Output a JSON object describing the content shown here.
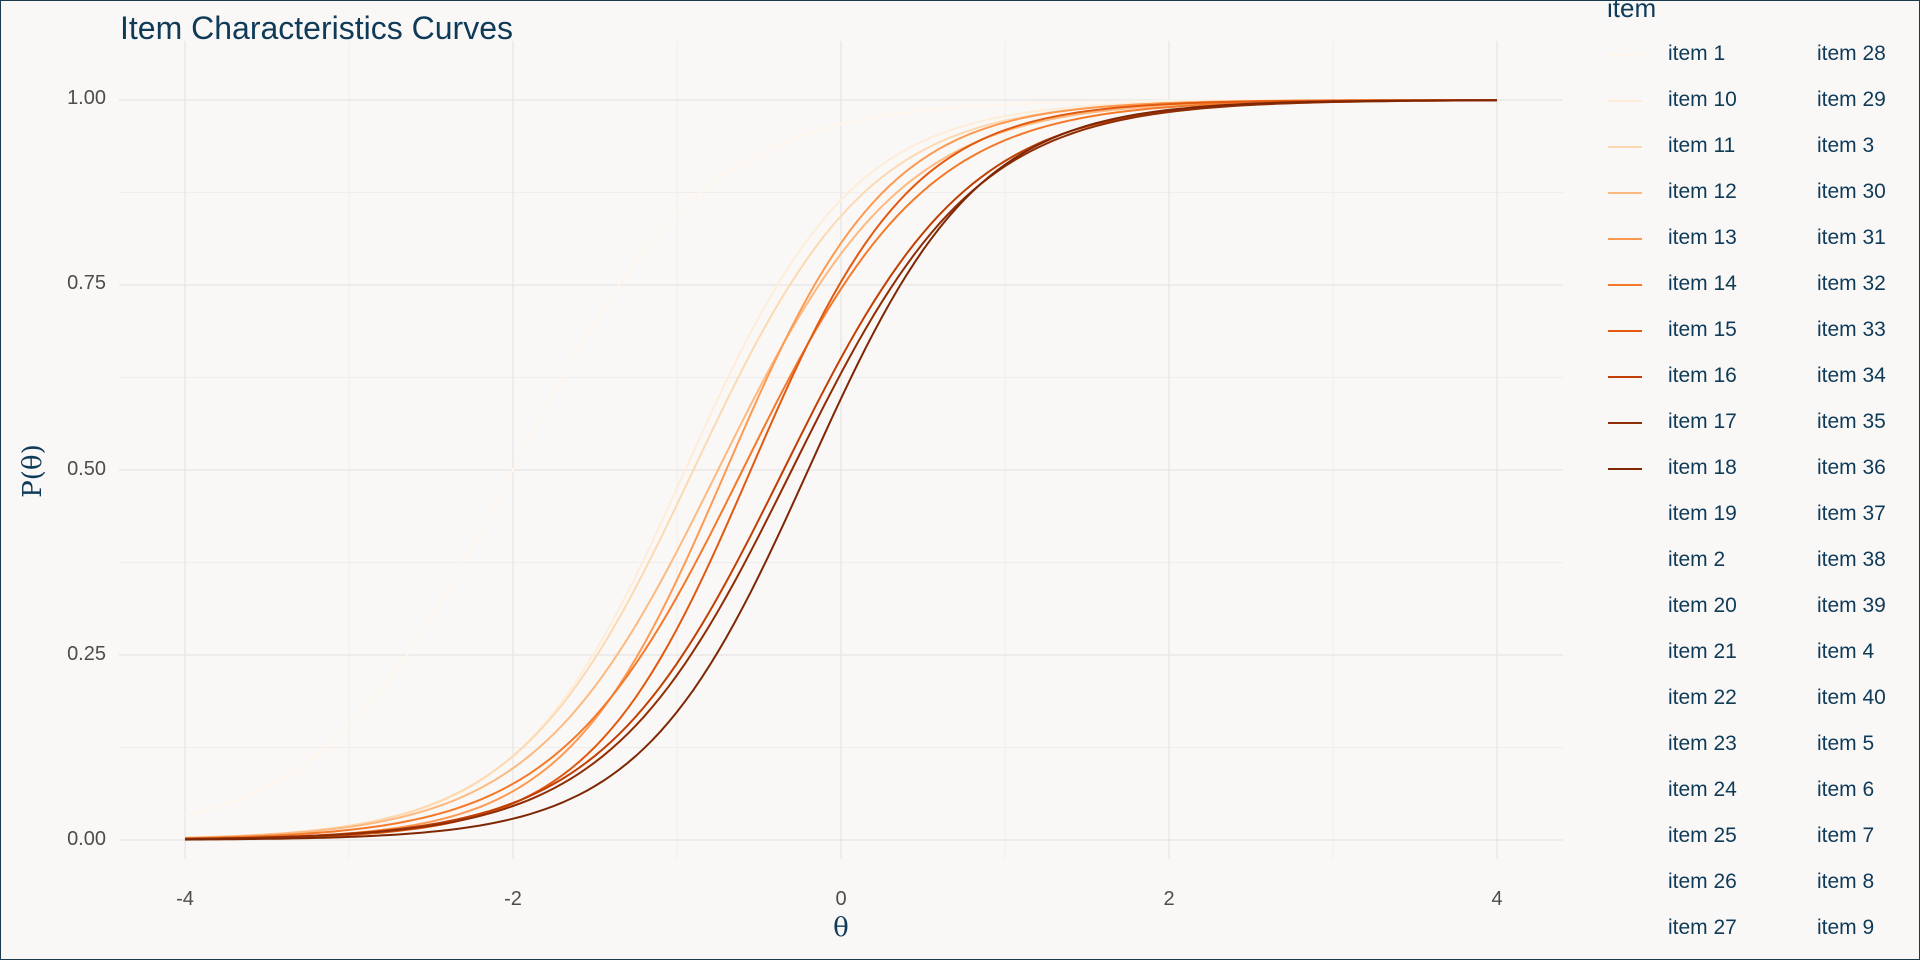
{
  "chart_data": {
    "type": "line",
    "title": "Item Characteristics Curves",
    "xlabel": "θ",
    "ylabel": "P(θ)",
    "xlim": [
      -4,
      4
    ],
    "ylim": [
      0,
      1
    ],
    "x_ticks": [
      "-4",
      "-2",
      "0",
      "2",
      "4"
    ],
    "y_ticks": [
      "0.00",
      "0.25",
      "0.50",
      "0.75",
      "1.00"
    ],
    "grid": true,
    "legend_title": "item",
    "legend_position": "right",
    "series": [
      {
        "name": "item 1",
        "color": "#fff5eb",
        "a": 1.0,
        "b": -2.0
      },
      {
        "name": "item 10",
        "color": "#feedd9",
        "a": 1.15,
        "b": -0.95
      },
      {
        "name": "item 11",
        "color": "#fdd9b2",
        "a": 1.1,
        "b": -0.9
      },
      {
        "name": "item 12",
        "color": "#fdb97f",
        "a": 1.05,
        "b": -0.75
      },
      {
        "name": "item 13",
        "color": "#fd9a52",
        "a": 1.2,
        "b": -0.7
      },
      {
        "name": "item 14",
        "color": "#f4792a",
        "a": 1.05,
        "b": -0.6
      },
      {
        "name": "item 15",
        "color": "#e25910",
        "a": 1.2,
        "b": -0.55
      },
      {
        "name": "item 16",
        "color": "#c13f03",
        "a": 1.05,
        "b": -0.35
      },
      {
        "name": "item 17",
        "color": "#8f2d04",
        "a": 1.05,
        "b": -0.3
      },
      {
        "name": "item 18",
        "color": "#7f2704",
        "a": 1.15,
        "b": -0.2
      }
    ],
    "legend_labels_col1": [
      "item 1",
      "item 10",
      "item 11",
      "item 12",
      "item 13",
      "item 14",
      "item 15",
      "item 16",
      "item 17",
      "item 18",
      "item 19",
      "item 2",
      "item 20",
      "item 21",
      "item 22",
      "item 23",
      "item 24",
      "item 25",
      "item 26",
      "item 27"
    ],
    "legend_labels_col2": [
      "item 28",
      "item 29",
      "item 3",
      "item 30",
      "item 31",
      "item 32",
      "item 33",
      "item 34",
      "item 35",
      "item 36",
      "item 37",
      "item 38",
      "item 39",
      "item 4",
      "item 40",
      "item 5",
      "item 6",
      "item 7",
      "item 8",
      "item 9"
    ]
  }
}
